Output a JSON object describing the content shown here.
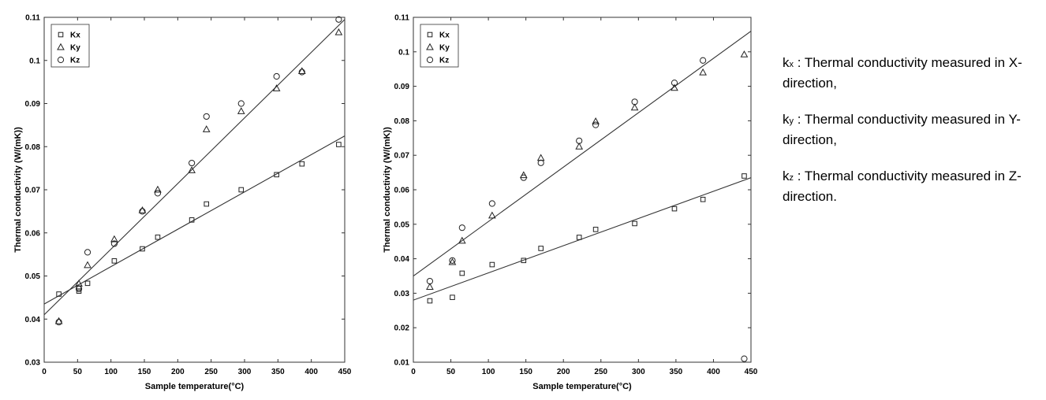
{
  "chart_data": [
    {
      "type": "scatter",
      "xlabel": "Sample temperature(°C)",
      "ylabel": "Thermal conductivity (W/(mK))",
      "xlim": [
        0,
        450
      ],
      "ylim": [
        0.03,
        0.11
      ],
      "xticks": [
        0,
        50,
        100,
        150,
        200,
        250,
        300,
        350,
        400,
        450
      ],
      "yticks": [
        0.03,
        0.04,
        0.05,
        0.06,
        0.07,
        0.08,
        0.09,
        0.1,
        0.11
      ],
      "ytick_labels": [
        "0.03",
        "0.04",
        "0.05",
        "0.06",
        "0.07",
        "0.08",
        "0.09",
        "0.1",
        "0.11"
      ],
      "grid": false,
      "legend": "top-left",
      "series": [
        {
          "name": "Kx",
          "marker": "square",
          "x": [
            22,
            52,
            52,
            65,
            105,
            147,
            170,
            221,
            243,
            295,
            348,
            386,
            441
          ],
          "y": [
            0.0458,
            0.0465,
            0.0472,
            0.0483,
            0.0535,
            0.0563,
            0.059,
            0.063,
            0.0667,
            0.07,
            0.0735,
            0.076,
            0.0805
          ]
        },
        {
          "name": "Ky",
          "marker": "triangle",
          "x": [
            22,
            52,
            65,
            105,
            147,
            170,
            221,
            243,
            295,
            348,
            386,
            441
          ],
          "y": [
            0.0395,
            0.0482,
            0.0525,
            0.0585,
            0.0652,
            0.07,
            0.0745,
            0.084,
            0.0882,
            0.0935,
            0.0975,
            0.1065
          ]
        },
        {
          "name": "Kz",
          "marker": "circle",
          "x": [
            22,
            52,
            65,
            105,
            147,
            170,
            221,
            243,
            295,
            348,
            386,
            441
          ],
          "y": [
            0.0393,
            0.047,
            0.0555,
            0.0575,
            0.065,
            0.0692,
            0.0762,
            0.087,
            0.09,
            0.0963,
            0.0973,
            0.1095
          ]
        }
      ],
      "fit_lines": [
        {
          "x": [
            0,
            450
          ],
          "y": [
            0.0435,
            0.0825
          ]
        },
        {
          "x": [
            0,
            450
          ],
          "y": [
            0.041,
            0.1095
          ]
        }
      ]
    },
    {
      "type": "scatter",
      "xlabel": "Sample temperature(°C)",
      "ylabel": "Thermal conductivity (W/(mK))",
      "xlim": [
        0,
        450
      ],
      "ylim": [
        0.01,
        0.11
      ],
      "xticks": [
        0,
        50,
        100,
        150,
        200,
        250,
        300,
        350,
        400,
        450
      ],
      "yticks": [
        0.01,
        0.02,
        0.03,
        0.04,
        0.05,
        0.06,
        0.07,
        0.08,
        0.09,
        0.1,
        0.11
      ],
      "ytick_labels": [
        "0.01",
        "0.02",
        "0.03",
        "0.04",
        "0.05",
        "0.06",
        "0.07",
        "0.08",
        "0.09",
        "0.1",
        "0.11"
      ],
      "grid": false,
      "legend": "top-left",
      "series": [
        {
          "name": "Kx",
          "marker": "square",
          "x": [
            22,
            52,
            65,
            105,
            147,
            170,
            221,
            243,
            295,
            348,
            386,
            441
          ],
          "y": [
            0.0278,
            0.0288,
            0.0358,
            0.0383,
            0.0395,
            0.043,
            0.0462,
            0.0485,
            0.0502,
            0.0545,
            0.0572,
            0.064
          ]
        },
        {
          "name": "Ky",
          "marker": "triangle",
          "x": [
            22,
            52,
            65,
            105,
            147,
            170,
            221,
            243,
            295,
            348,
            386,
            441
          ],
          "y": [
            0.0318,
            0.039,
            0.0452,
            0.0525,
            0.0642,
            0.0692,
            0.0725,
            0.0798,
            0.0838,
            0.0895,
            0.094,
            0.0992
          ]
        },
        {
          "name": "Kz",
          "marker": "circle",
          "x": [
            22,
            52,
            65,
            105,
            147,
            170,
            221,
            243,
            295,
            348,
            386,
            441
          ],
          "y": [
            0.0335,
            0.0395,
            0.049,
            0.056,
            0.0635,
            0.0678,
            0.0742,
            0.0788,
            0.0855,
            0.091,
            0.0975,
            0.011
          ]
        }
      ],
      "fit_lines": [
        {
          "x": [
            0,
            450
          ],
          "y": [
            0.028,
            0.0635
          ]
        },
        {
          "x": [
            0,
            450
          ],
          "y": [
            0.035,
            0.106
          ]
        }
      ]
    }
  ],
  "definitions": [
    {
      "symbol": "k",
      "sub": "x",
      "text": " : Thermal conductivity measured in X-direction,"
    },
    {
      "symbol": "k",
      "sub": "y",
      "text": " : Thermal conductivity measured in Y-direction,"
    },
    {
      "symbol": "k",
      "sub": "z",
      "text": " : Thermal conductivity measured in Z-direction."
    }
  ]
}
